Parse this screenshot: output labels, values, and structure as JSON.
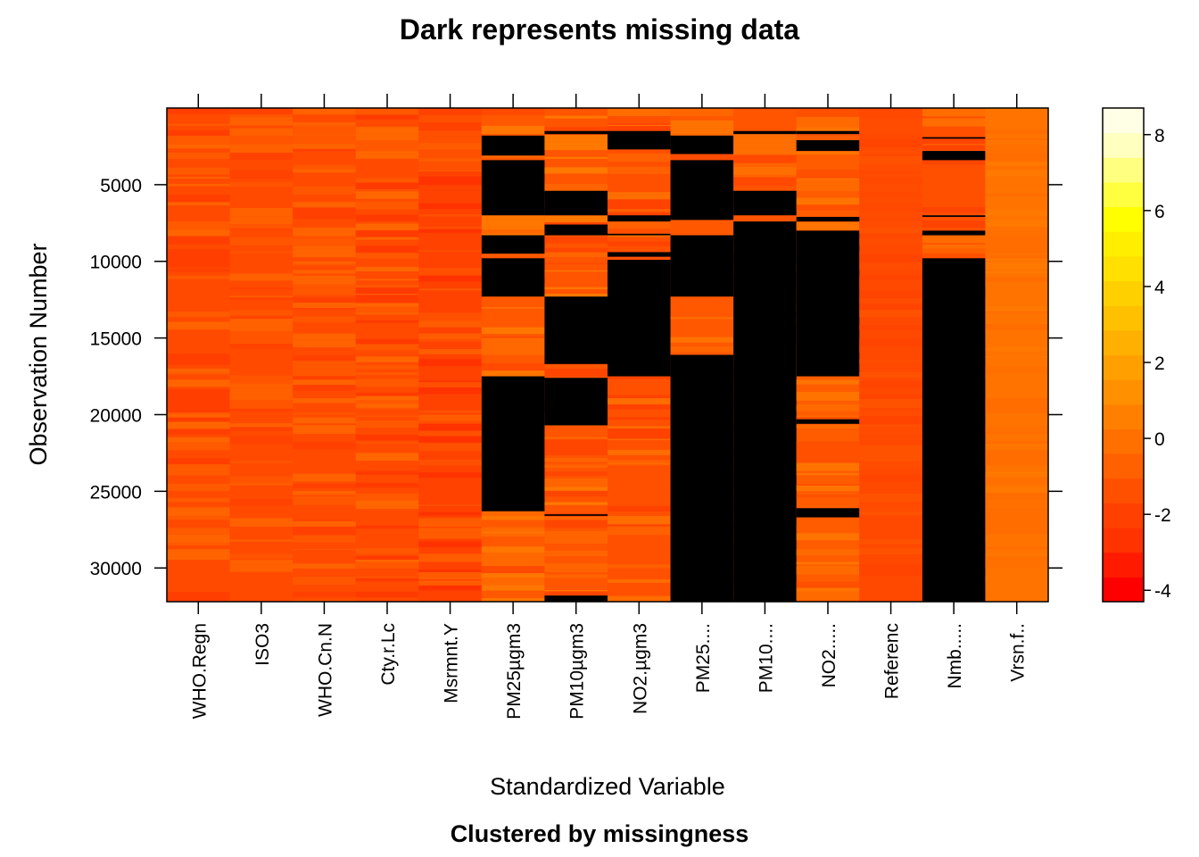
{
  "chart_data": {
    "type": "heatmap",
    "title": "Dark represents missing data",
    "xlabel": "Standardized Variable",
    "ylabel": "Observation Number",
    "subtitle": "Clustered by missingness",
    "variables": [
      "WHO.Regn",
      "ISO3",
      "WHO.Cn.N",
      "Cty.r.Lc",
      "Msrmnt.Y",
      "PM25µgm3",
      "PM10µgm3",
      "NO2.µgm3",
      "PM25....",
      "PM10....",
      "NO2.....",
      "Referenc",
      "Nmb.....",
      "Vrsn.f.."
    ],
    "y_ticks": [
      5000,
      10000,
      15000,
      20000,
      25000,
      30000
    ],
    "ylim": [
      0,
      32200
    ],
    "missing_color": "#000000",
    "missing_ranges": {
      "PM25µgm3": [
        [
          1800,
          3100
        ],
        [
          3400,
          7000
        ],
        [
          8300,
          9500
        ],
        [
          9800,
          12300
        ],
        [
          17500,
          26300
        ]
      ],
      "PM10µgm3": [
        [
          1500,
          1700
        ],
        [
          5400,
          7000
        ],
        [
          7600,
          8300
        ],
        [
          12300,
          16700
        ],
        [
          17600,
          20700
        ],
        [
          26500,
          26600
        ],
        [
          31800,
          32200
        ]
      ],
      "NO2.µgm3": [
        [
          1500,
          2700
        ],
        [
          7000,
          7400
        ],
        [
          8200,
          8300
        ],
        [
          9400,
          9700
        ],
        [
          9900,
          17500
        ]
      ],
      "PM25....": [
        [
          1800,
          3000
        ],
        [
          3400,
          7300
        ],
        [
          8300,
          12300
        ],
        [
          16100,
          32200
        ]
      ],
      "PM10....": [
        [
          1500,
          1700
        ],
        [
          5400,
          7000
        ],
        [
          7400,
          32200
        ]
      ],
      "NO2.....": [
        [
          1500,
          1700
        ],
        [
          2100,
          2800
        ],
        [
          7100,
          7400
        ],
        [
          8000,
          17500
        ],
        [
          20300,
          20600
        ],
        [
          26100,
          26700
        ]
      ],
      "Nmb.....": [
        [
          1900,
          2000
        ],
        [
          2800,
          3400
        ],
        [
          7000,
          7100
        ],
        [
          8000,
          8300
        ],
        [
          9800,
          32200
        ]
      ]
    },
    "legend": {
      "ticks": [
        -4,
        -2,
        0,
        2,
        4,
        6,
        8
      ],
      "range": [
        -4.3,
        8.7
      ],
      "colors": [
        "#ff0000",
        "#ff1a00",
        "#ff3300",
        "#ff4000",
        "#ff5000",
        "#ff6000",
        "#ff7000",
        "#ff8000",
        "#ff9000",
        "#ffa000",
        "#ffb000",
        "#ffc000",
        "#ffd000",
        "#ffe000",
        "#ffee00",
        "#ffff00",
        "#ffff40",
        "#ffff80",
        "#ffffbf",
        "#ffffe6"
      ]
    }
  }
}
